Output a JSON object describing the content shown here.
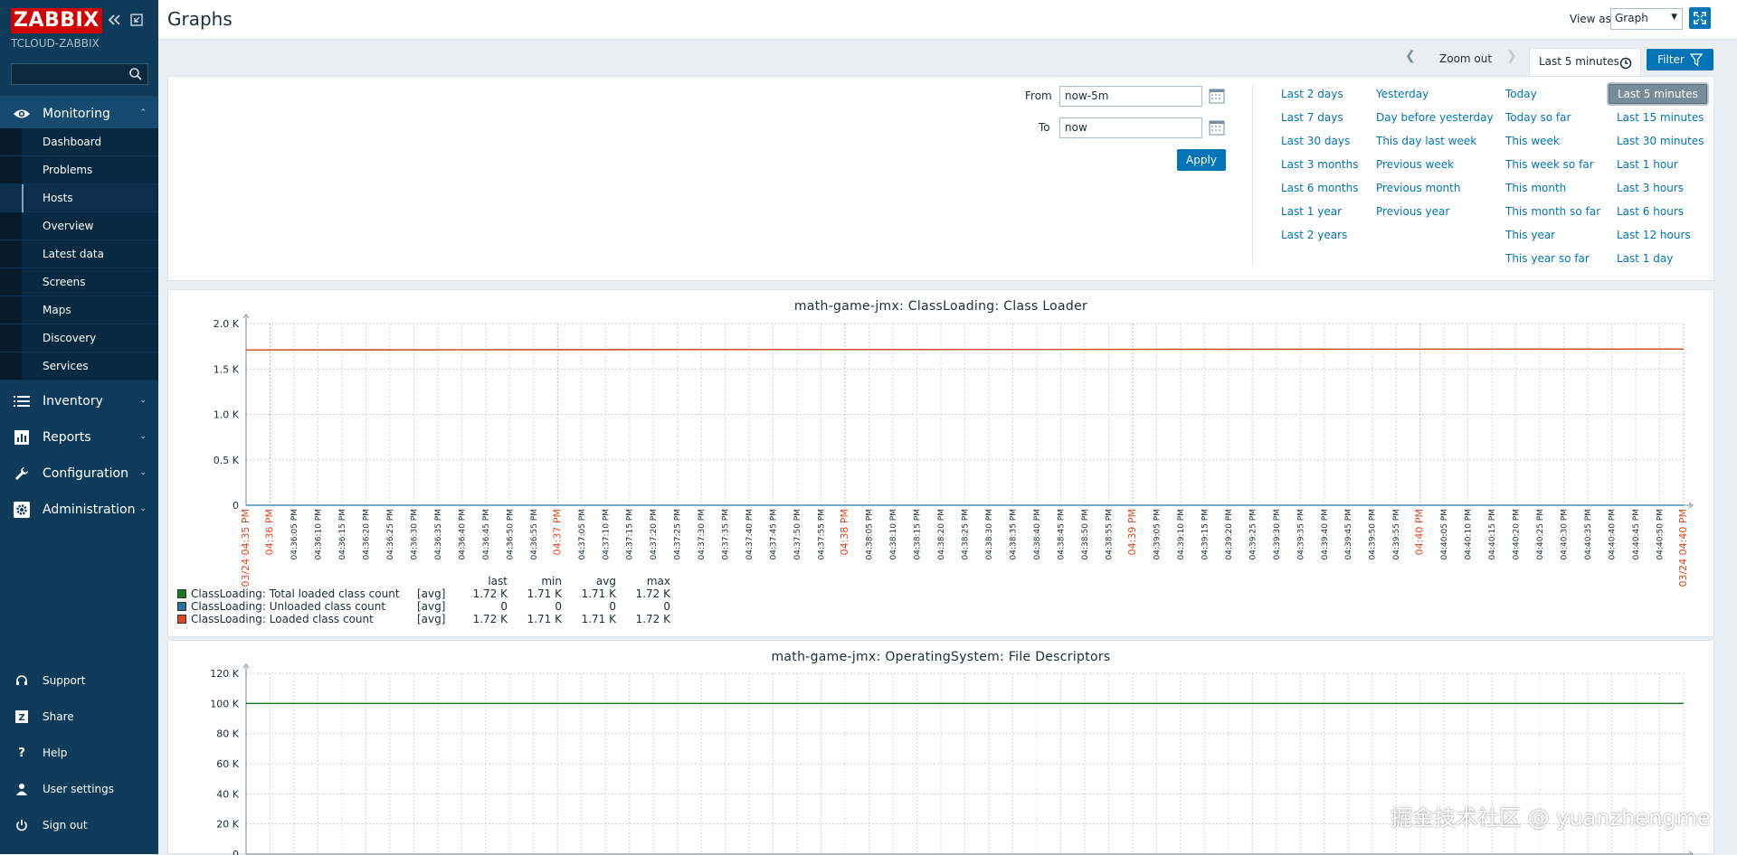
{
  "sidebar": {
    "logo": "ZABBIX",
    "server_name": "TCLOUD-ZABBIX",
    "search_placeholder": "",
    "monitoring": "Monitoring",
    "submenu": [
      "Dashboard",
      "Problems",
      "Hosts",
      "Overview",
      "Latest data",
      "Screens",
      "Maps",
      "Discovery",
      "Services"
    ],
    "active_submenu": "Hosts",
    "main": [
      "Inventory",
      "Reports",
      "Configuration",
      "Administration"
    ],
    "footer": [
      "Support",
      "Share",
      "Help",
      "User settings",
      "Sign out"
    ]
  },
  "header": {
    "title": "Graphs",
    "view_as_label": "View as",
    "view_as_value": "Graph"
  },
  "timebar": {
    "zoom_out": "Zoom out",
    "range": "Last 5 minutes",
    "filter": "Filter"
  },
  "filter": {
    "from_label": "From",
    "from_value": "now-5m",
    "to_label": "To",
    "to_value": "now",
    "apply": "Apply",
    "quick": [
      [
        "Last 2 days",
        "Last 7 days",
        "Last 30 days",
        "Last 3 months",
        "Last 6 months",
        "Last 1 year",
        "Last 2 years"
      ],
      [
        "Yesterday",
        "Day before yesterday",
        "This day last week",
        "Previous week",
        "Previous month",
        "Previous year"
      ],
      [
        "Today",
        "Today so far",
        "This week",
        "This week so far",
        "This month",
        "This month so far",
        "This year",
        "This year so far"
      ],
      [
        "Last 5 minutes",
        "Last 15 minutes",
        "Last 30 minutes",
        "Last 1 hour",
        "Last 3 hours",
        "Last 6 hours",
        "Last 12 hours",
        "Last 1 day"
      ]
    ],
    "selected": "Last 5 minutes"
  },
  "graph1": {
    "title": "math-game-jmx: ClassLoading: Class Loader",
    "legend_headers": [
      "last",
      "min",
      "avg",
      "max"
    ],
    "legend": [
      {
        "name": "ClassLoading: Total loaded class count",
        "fn": "[avg]",
        "last": "1.72 K",
        "min": "1.71 K",
        "avg": "1.71 K",
        "max": "1.72 K",
        "color": "#1a7a1a"
      },
      {
        "name": "ClassLoading: Unloaded class count",
        "fn": "[avg]",
        "last": "0",
        "min": "0",
        "avg": "0",
        "max": "0",
        "color": "#2774a4"
      },
      {
        "name": "ClassLoading: Loaded class count",
        "fn": "[avg]",
        "last": "1.72 K",
        "min": "1.71 K",
        "avg": "1.71 K",
        "max": "1.72 K",
        "color": "#e0461e"
      }
    ]
  },
  "graph2": {
    "title": "math-game-jmx: OperatingSystem: File Descriptors"
  },
  "chart_data": [
    {
      "type": "line",
      "title": "math-game-jmx: ClassLoading: Class Loader",
      "ylim": [
        0,
        2000
      ],
      "y_ticks": [
        "0",
        "0.5 K",
        "1.0 K",
        "1.5 K",
        "2.0 K"
      ],
      "x_ticks": [
        "03/24 04:35 PM",
        "04:36 PM",
        "04:36:05 PM",
        "04:36:10 PM",
        "04:36:15 PM",
        "04:36:20 PM",
        "04:36:25 PM",
        "04:36:30 PM",
        "04:36:35 PM",
        "04:36:40 PM",
        "04:36:45 PM",
        "04:36:50 PM",
        "04:36:55 PM",
        "04:37 PM",
        "04:37:05 PM",
        "04:37:10 PM",
        "04:37:15 PM",
        "04:37:20 PM",
        "04:37:25 PM",
        "04:37:30 PM",
        "04:37:35 PM",
        "04:37:40 PM",
        "04:37:45 PM",
        "04:37:50 PM",
        "04:37:55 PM",
        "04:38 PM",
        "04:38:05 PM",
        "04:38:10 PM",
        "04:38:15 PM",
        "04:38:20 PM",
        "04:38:25 PM",
        "04:38:30 PM",
        "04:38:35 PM",
        "04:38:40 PM",
        "04:38:45 PM",
        "04:38:50 PM",
        "04:38:55 PM",
        "04:39 PM",
        "04:39:05 PM",
        "04:39:10 PM",
        "04:39:15 PM",
        "04:39:20 PM",
        "04:39:25 PM",
        "04:39:30 PM",
        "04:39:35 PM",
        "04:39:40 PM",
        "04:39:45 PM",
        "04:39:50 PM",
        "04:39:55 PM",
        "04:40 PM",
        "04:40:05 PM",
        "04:40:10 PM",
        "04:40:15 PM",
        "04:40:20 PM",
        "04:40:25 PM",
        "04:40:30 PM",
        "04:40:35 PM",
        "04:40:40 PM",
        "04:40:45 PM",
        "04:40:50 PM",
        "03/24 04:40 PM"
      ],
      "highlight_ticks": [
        "03/24 04:35 PM",
        "04:36 PM",
        "04:37 PM",
        "04:38 PM",
        "04:39 PM",
        "04:40 PM",
        "03/24 04:40 PM"
      ],
      "series": [
        {
          "name": "ClassLoading: Total loaded class count",
          "color": "#1a7a1a",
          "values": [
            1710,
            1715,
            1720
          ]
        },
        {
          "name": "ClassLoading: Unloaded class count",
          "color": "#2774a4",
          "values": [
            0,
            0,
            0
          ]
        },
        {
          "name": "ClassLoading: Loaded class count",
          "color": "#e0461e",
          "values": [
            1710,
            1715,
            1720
          ]
        }
      ]
    },
    {
      "type": "line",
      "title": "math-game-jmx: OperatingSystem: File Descriptors",
      "ylim": [
        0,
        120000
      ],
      "y_ticks": [
        "0",
        "20 K",
        "40 K",
        "60 K",
        "80 K",
        "100 K",
        "120 K"
      ],
      "series": [
        {
          "color": "#1a7a1a",
          "values": [
            100000,
            100000
          ]
        }
      ]
    }
  ],
  "watermark": "掘金技术社区 @ yuanzhengme"
}
